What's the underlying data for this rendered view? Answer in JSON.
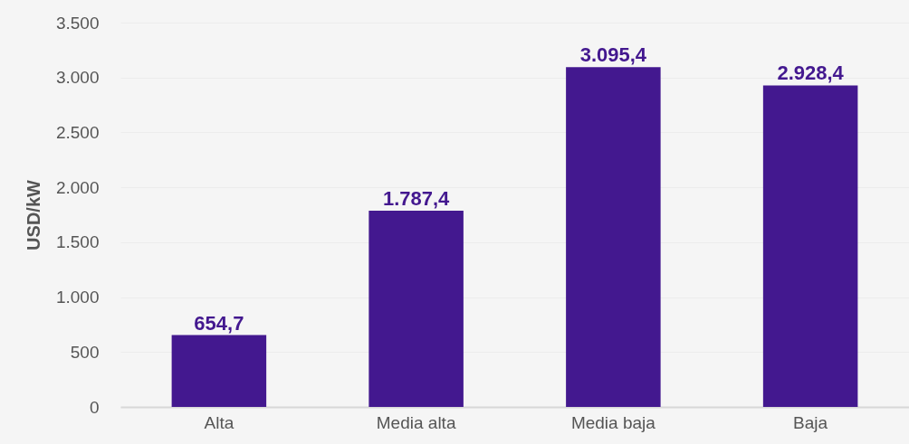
{
  "chart_data": {
    "type": "bar",
    "ylabel": "USD/kW",
    "categories": [
      "Alta",
      "Media alta",
      "Media baja",
      "Baja"
    ],
    "values": [
      654.7,
      1787.4,
      3095.4,
      2928.4
    ],
    "value_labels": [
      "654,7",
      "1.787,4",
      "3.095,4",
      "2.928,4"
    ],
    "color": "#43188f",
    "ylim": [
      0,
      3500
    ],
    "yticks": [
      0,
      500,
      {
        "value": 1000,
        "label": "1.000"
      },
      {
        "value": 1500,
        "label": "1.500"
      },
      {
        "value": 2000,
        "label": "2.000"
      },
      {
        "value": 2500,
        "label": "2.500"
      },
      {
        "value": 3000,
        "label": "3.000"
      },
      {
        "value": 3500,
        "label": "3.500"
      }
    ],
    "grid": "y"
  }
}
